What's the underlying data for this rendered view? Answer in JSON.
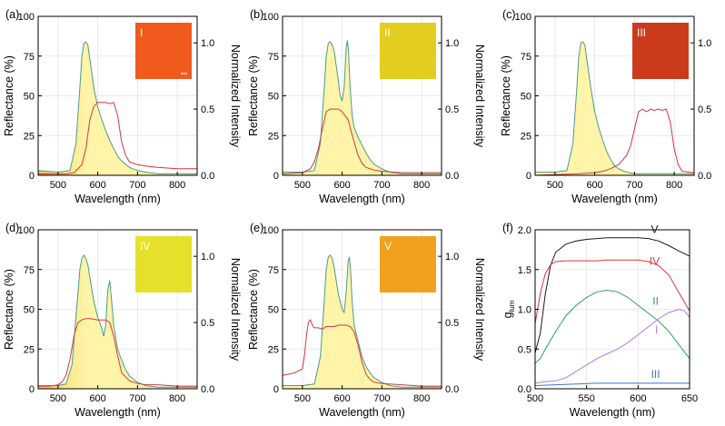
{
  "chart_data": [
    {
      "panel_label": "(a)",
      "type": "line",
      "xlabel": "Wavelength (nm)",
      "ylabel": "Reflectance (%)",
      "y2label": "Normalized Intensity",
      "xlim": [
        450,
        850
      ],
      "ylim": [
        0,
        100
      ],
      "y2lim": [
        0,
        1.2
      ],
      "xticks": [
        500,
        600,
        700,
        800
      ],
      "yticks": [
        0,
        25,
        50,
        75,
        100
      ],
      "y2ticks": [
        "0.0",
        "0.5",
        "1.0"
      ],
      "grid": true,
      "inset": {
        "label": "I",
        "color": "#f05a1c"
      },
      "series": [
        {
          "axis": "left",
          "style": "reflectance-filled",
          "x": [
            450,
            500,
            530,
            545,
            555,
            560,
            565,
            570,
            575,
            580,
            590,
            600,
            610,
            620,
            630,
            640,
            650,
            660,
            670,
            680,
            700,
            720,
            750,
            800,
            850
          ],
          "y": [
            3,
            2,
            3,
            20,
            55,
            75,
            83,
            84,
            82,
            73,
            55,
            43,
            35,
            28,
            22,
            17,
            12,
            9,
            7,
            5,
            3,
            2,
            1,
            1,
            1
          ]
        },
        {
          "axis": "right",
          "color": "#d9363e",
          "x": [
            450,
            500,
            520,
            540,
            560,
            570,
            580,
            590,
            600,
            610,
            620,
            630,
            640,
            650,
            660,
            670,
            680,
            700,
            720,
            750,
            800,
            850
          ],
          "y": [
            0.01,
            0.01,
            0.01,
            0.02,
            0.08,
            0.2,
            0.42,
            0.52,
            0.55,
            0.55,
            0.55,
            0.54,
            0.55,
            0.45,
            0.25,
            0.15,
            0.1,
            0.08,
            0.07,
            0.06,
            0.05,
            0.05
          ]
        }
      ]
    },
    {
      "panel_label": "(b)",
      "type": "line",
      "xlabel": "Wavelength (nm)",
      "ylabel": "Reflectance (%)",
      "y2label": "Normalized Intensity",
      "xlim": [
        450,
        850
      ],
      "ylim": [
        0,
        100
      ],
      "y2lim": [
        0,
        1.2
      ],
      "xticks": [
        500,
        600,
        700,
        800
      ],
      "yticks": [
        0,
        25,
        50,
        75,
        100
      ],
      "y2ticks": [
        "0.0",
        "0.5",
        "1.0"
      ],
      "grid": true,
      "inset": {
        "label": "II",
        "color": "#e3cd1e"
      },
      "series": [
        {
          "axis": "left",
          "style": "reflectance-filled",
          "x": [
            450,
            500,
            530,
            545,
            555,
            560,
            565,
            570,
            575,
            580,
            590,
            595,
            600,
            605,
            610,
            613,
            616,
            620,
            625,
            630,
            640,
            650,
            660,
            670,
            680,
            700,
            720,
            750,
            800,
            850
          ],
          "y": [
            2,
            2,
            3,
            20,
            55,
            75,
            83,
            84,
            82,
            78,
            60,
            50,
            47,
            55,
            80,
            85,
            78,
            55,
            38,
            30,
            24,
            19,
            14,
            10,
            7,
            4,
            2,
            1,
            1,
            1
          ]
        },
        {
          "axis": "right",
          "color": "#d9363e",
          "x": [
            450,
            500,
            520,
            530,
            540,
            550,
            560,
            570,
            580,
            590,
            600,
            605,
            610,
            615,
            620,
            630,
            640,
            650,
            660,
            680,
            700,
            750,
            800,
            850
          ],
          "y": [
            0.01,
            0.02,
            0.05,
            0.1,
            0.2,
            0.35,
            0.48,
            0.5,
            0.5,
            0.5,
            0.48,
            0.46,
            0.44,
            0.42,
            0.36,
            0.25,
            0.15,
            0.09,
            0.06,
            0.04,
            0.03,
            0.02,
            0.02,
            0.02
          ]
        }
      ]
    },
    {
      "panel_label": "(c)",
      "type": "line",
      "xlabel": "Wavelength (nm)",
      "ylabel": "Reflectance (%)",
      "y2label": "Normalized Intensity",
      "xlim": [
        450,
        850
      ],
      "ylim": [
        0,
        100
      ],
      "y2lim": [
        0,
        1.2
      ],
      "xticks": [
        500,
        600,
        700,
        800
      ],
      "yticks": [
        0,
        25,
        50,
        75,
        100
      ],
      "y2ticks": [
        "0.0",
        "0.5",
        "1.0"
      ],
      "grid": true,
      "inset": {
        "label": "III",
        "color": "#cb3a1a"
      },
      "series": [
        {
          "axis": "left",
          "style": "reflectance-filled",
          "x": [
            450,
            500,
            530,
            545,
            555,
            560,
            565,
            570,
            575,
            580,
            590,
            600,
            610,
            620,
            630,
            640,
            650,
            660,
            680,
            700,
            750,
            800,
            850
          ],
          "y": [
            2,
            2,
            3,
            20,
            55,
            75,
            83,
            84,
            82,
            73,
            55,
            40,
            30,
            22,
            15,
            10,
            6,
            4,
            2,
            1,
            1,
            1,
            1
          ]
        },
        {
          "axis": "right",
          "color": "#d9363e",
          "x": [
            450,
            550,
            600,
            620,
            640,
            660,
            680,
            690,
            700,
            710,
            720,
            730,
            740,
            750,
            760,
            770,
            780,
            790,
            800,
            810,
            820,
            850
          ],
          "y": [
            0,
            0.01,
            0.02,
            0.03,
            0.05,
            0.08,
            0.15,
            0.22,
            0.35,
            0.48,
            0.5,
            0.48,
            0.5,
            0.49,
            0.5,
            0.49,
            0.5,
            0.4,
            0.2,
            0.08,
            0.03,
            0.02
          ]
        }
      ]
    },
    {
      "panel_label": "(d)",
      "type": "line",
      "xlabel": "Wavelength (nm)",
      "ylabel": "Reflectance (%)",
      "y2label": "Normalized Intensity",
      "xlim": [
        450,
        850
      ],
      "ylim": [
        0,
        100
      ],
      "y2lim": [
        0,
        1.2
      ],
      "xticks": [
        500,
        600,
        700,
        800
      ],
      "yticks": [
        0,
        25,
        50,
        75,
        100
      ],
      "y2ticks": [
        "0.0",
        "0.5",
        "1.0"
      ],
      "grid": true,
      "inset": {
        "label": "IV",
        "color": "#e6e02a"
      },
      "series": [
        {
          "axis": "left",
          "style": "reflectance-filled",
          "x": [
            450,
            500,
            520,
            535,
            545,
            555,
            560,
            565,
            570,
            575,
            580,
            590,
            600,
            610,
            615,
            620,
            625,
            630,
            635,
            640,
            650,
            660,
            670,
            680,
            700,
            720,
            750,
            800,
            850
          ],
          "y": [
            2,
            2,
            3,
            15,
            45,
            75,
            82,
            84,
            82,
            78,
            70,
            55,
            45,
            38,
            33,
            40,
            62,
            68,
            55,
            40,
            25,
            18,
            12,
            8,
            4,
            2,
            1,
            1,
            1
          ]
        },
        {
          "axis": "right",
          "color": "#d9363e",
          "x": [
            450,
            480,
            500,
            510,
            520,
            530,
            540,
            550,
            560,
            570,
            580,
            600,
            620,
            630,
            640,
            650,
            660,
            680,
            700,
            720,
            750,
            800,
            850
          ],
          "y": [
            0.02,
            0.02,
            0.03,
            0.05,
            0.1,
            0.22,
            0.4,
            0.5,
            0.52,
            0.53,
            0.53,
            0.52,
            0.52,
            0.5,
            0.4,
            0.25,
            0.12,
            0.06,
            0.04,
            0.03,
            0.03,
            0.02,
            0.02
          ]
        }
      ]
    },
    {
      "panel_label": "(e)",
      "type": "line",
      "xlabel": "Wavelength (nm)",
      "ylabel": "Reflectance (%)",
      "y2label": "Normalized Intensity",
      "xlim": [
        450,
        850
      ],
      "ylim": [
        0,
        100
      ],
      "y2lim": [
        0,
        1.2
      ],
      "xticks": [
        500,
        600,
        700,
        800
      ],
      "yticks": [
        0,
        25,
        50,
        75,
        100
      ],
      "y2ticks": [
        "0.0",
        "0.5",
        "1.0"
      ],
      "grid": true,
      "inset": {
        "label": "V",
        "color": "#f0a21e"
      },
      "series": [
        {
          "axis": "left",
          "style": "reflectance-filled",
          "x": [
            450,
            500,
            530,
            545,
            555,
            560,
            565,
            570,
            575,
            580,
            590,
            600,
            605,
            610,
            615,
            618,
            621,
            625,
            630,
            640,
            650,
            660,
            670,
            680,
            700,
            720,
            750,
            800,
            850
          ],
          "y": [
            2,
            2,
            3,
            20,
            55,
            75,
            83,
            84,
            82,
            76,
            60,
            50,
            48,
            60,
            80,
            83,
            75,
            55,
            40,
            30,
            20,
            14,
            10,
            7,
            4,
            2,
            1,
            1,
            1
          ]
        },
        {
          "axis": "right",
          "color": "#d9363e",
          "x": [
            450,
            480,
            500,
            505,
            510,
            515,
            520,
            525,
            530,
            540,
            550,
            560,
            570,
            580,
            590,
            600,
            610,
            620,
            630,
            640,
            650,
            660,
            670,
            680,
            700,
            750,
            800,
            850
          ],
          "y": [
            0.1,
            0.12,
            0.15,
            0.25,
            0.4,
            0.5,
            0.52,
            0.48,
            0.46,
            0.46,
            0.45,
            0.47,
            0.47,
            0.47,
            0.48,
            0.48,
            0.48,
            0.47,
            0.43,
            0.33,
            0.2,
            0.11,
            0.07,
            0.05,
            0.04,
            0.03,
            0.02,
            0.02
          ]
        }
      ]
    },
    {
      "panel_label": "(f)",
      "type": "line",
      "xlabel": "Wavelength (nm)",
      "ylabel": "g",
      "ylabel_sub": "lum",
      "xlim": [
        500,
        650
      ],
      "ylim": [
        0,
        2.0
      ],
      "xticks": [
        500,
        550,
        600,
        650
      ],
      "yticks": [
        "0.0",
        "0.5",
        "1.0",
        "1.5",
        "2.0"
      ],
      "grid": true,
      "series": [
        {
          "name": "V",
          "color": "#1a1a1a",
          "label_x": 616,
          "label_y": 1.96,
          "x": [
            500,
            505,
            510,
            515,
            520,
            530,
            540,
            550,
            560,
            570,
            580,
            590,
            600,
            610,
            620,
            630,
            640,
            650
          ],
          "y": [
            0.45,
            0.7,
            1.2,
            1.55,
            1.72,
            1.82,
            1.86,
            1.88,
            1.89,
            1.9,
            1.9,
            1.9,
            1.9,
            1.89,
            1.86,
            1.8,
            1.73,
            1.67
          ]
        },
        {
          "name": "IV",
          "color": "#d9363e",
          "label_x": 616,
          "label_y": 1.56,
          "x": [
            500,
            505,
            510,
            515,
            520,
            530,
            540,
            550,
            560,
            570,
            580,
            590,
            600,
            610,
            620,
            630,
            640,
            650
          ],
          "y": [
            0.82,
            1.2,
            1.45,
            1.56,
            1.6,
            1.61,
            1.61,
            1.61,
            1.61,
            1.62,
            1.62,
            1.62,
            1.62,
            1.6,
            1.55,
            1.43,
            1.2,
            0.98
          ]
        },
        {
          "name": "II",
          "color": "#2e9e6e",
          "label_x": 617,
          "label_y": 1.06,
          "x": [
            500,
            505,
            510,
            520,
            530,
            540,
            550,
            560,
            570,
            580,
            590,
            600,
            610,
            620,
            630,
            640,
            650
          ],
          "y": [
            0.32,
            0.38,
            0.5,
            0.72,
            0.92,
            1.05,
            1.15,
            1.22,
            1.24,
            1.22,
            1.15,
            1.05,
            0.95,
            0.85,
            0.72,
            0.55,
            0.38
          ]
        },
        {
          "name": "I",
          "color": "#b07be0",
          "label_x": 618,
          "label_y": 0.7,
          "x": [
            500,
            505,
            510,
            520,
            530,
            540,
            550,
            560,
            570,
            580,
            590,
            600,
            610,
            620,
            630,
            640,
            645,
            650
          ],
          "y": [
            0.07,
            0.08,
            0.09,
            0.1,
            0.14,
            0.22,
            0.3,
            0.38,
            0.44,
            0.5,
            0.58,
            0.68,
            0.78,
            0.88,
            0.96,
            1.0,
            0.98,
            0.9
          ]
        },
        {
          "name": "III",
          "color": "#3b73d6",
          "label_x": 617,
          "label_y": 0.14,
          "x": [
            500,
            520,
            540,
            560,
            580,
            600,
            620,
            640,
            650
          ],
          "y": [
            0.04,
            0.05,
            0.06,
            0.07,
            0.07,
            0.07,
            0.07,
            0.07,
            0.07
          ]
        }
      ]
    }
  ]
}
